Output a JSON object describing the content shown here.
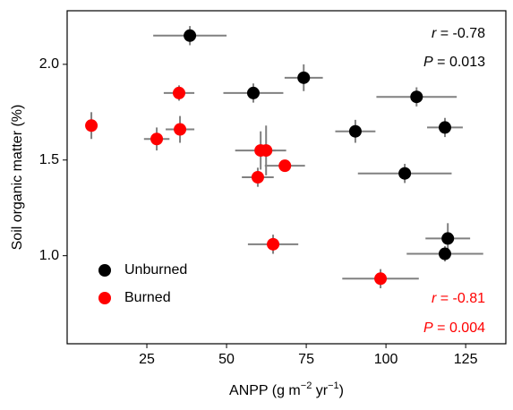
{
  "chart_data": {
    "type": "scatter",
    "x_label": [
      "ANPP (g m",
      "−2",
      " yr",
      "−1",
      ")"
    ],
    "y_label": "Soil organic matter (%)",
    "xlim": [
      0,
      137.6
    ],
    "ylim": [
      0.54,
      2.28
    ],
    "xticks": [
      25,
      50,
      75,
      100,
      125
    ],
    "yticks": [
      {
        "value": 1,
        "label": "1.0"
      },
      {
        "value": 1.5,
        "label": "1.5"
      },
      {
        "value": 2,
        "label": "2.0"
      }
    ],
    "grid": false,
    "legend": "lower left",
    "error_color": "#808080",
    "series": [
      {
        "name": "Unburned",
        "color": "#000000",
        "x": [
          38.5,
          58.4,
          74.2,
          109.6,
          118.5,
          90.4,
          105.9,
          119.4,
          118.5
        ],
        "values": [
          2.15,
          1.85,
          1.93,
          1.83,
          1.67,
          1.65,
          1.43,
          1.09,
          1.01
        ],
        "xerr": [
          11.5,
          9.4,
          6,
          12.6,
          5.6,
          6.3,
          14.7,
          7,
          12
        ],
        "yerr": [
          0.05,
          0.05,
          0.07,
          0.05,
          0.05,
          0.06,
          0.05,
          0.08,
          0.04
        ]
      },
      {
        "name": "Burned",
        "color": "#ff0000",
        "x": [
          7.6,
          28.1,
          35.1,
          35.4,
          60.7,
          62.4,
          59.8,
          68.3,
          64.6,
          98.3
        ],
        "values": [
          1.68,
          1.61,
          1.85,
          1.66,
          1.55,
          1.55,
          1.41,
          1.47,
          1.06,
          0.88
        ],
        "xerr": [
          1.5,
          4,
          4.8,
          4.5,
          8,
          3,
          5,
          6.3,
          7.9,
          12
        ],
        "yerr": [
          0.07,
          0.06,
          0.04,
          0.07,
          0.1,
          0.13,
          0.05,
          0.03,
          0.05,
          0.05
        ]
      }
    ],
    "annotations": [
      {
        "var": "r",
        "text": " = -0.78",
        "color": "#000000"
      },
      {
        "var": "P",
        "text": " = 0.013",
        "color": "#000000"
      },
      {
        "var": "r",
        "text": " = -0.81",
        "color": "#ff0000"
      },
      {
        "var": "P",
        "text": " = 0.004",
        "color": "#ff0000"
      }
    ]
  }
}
